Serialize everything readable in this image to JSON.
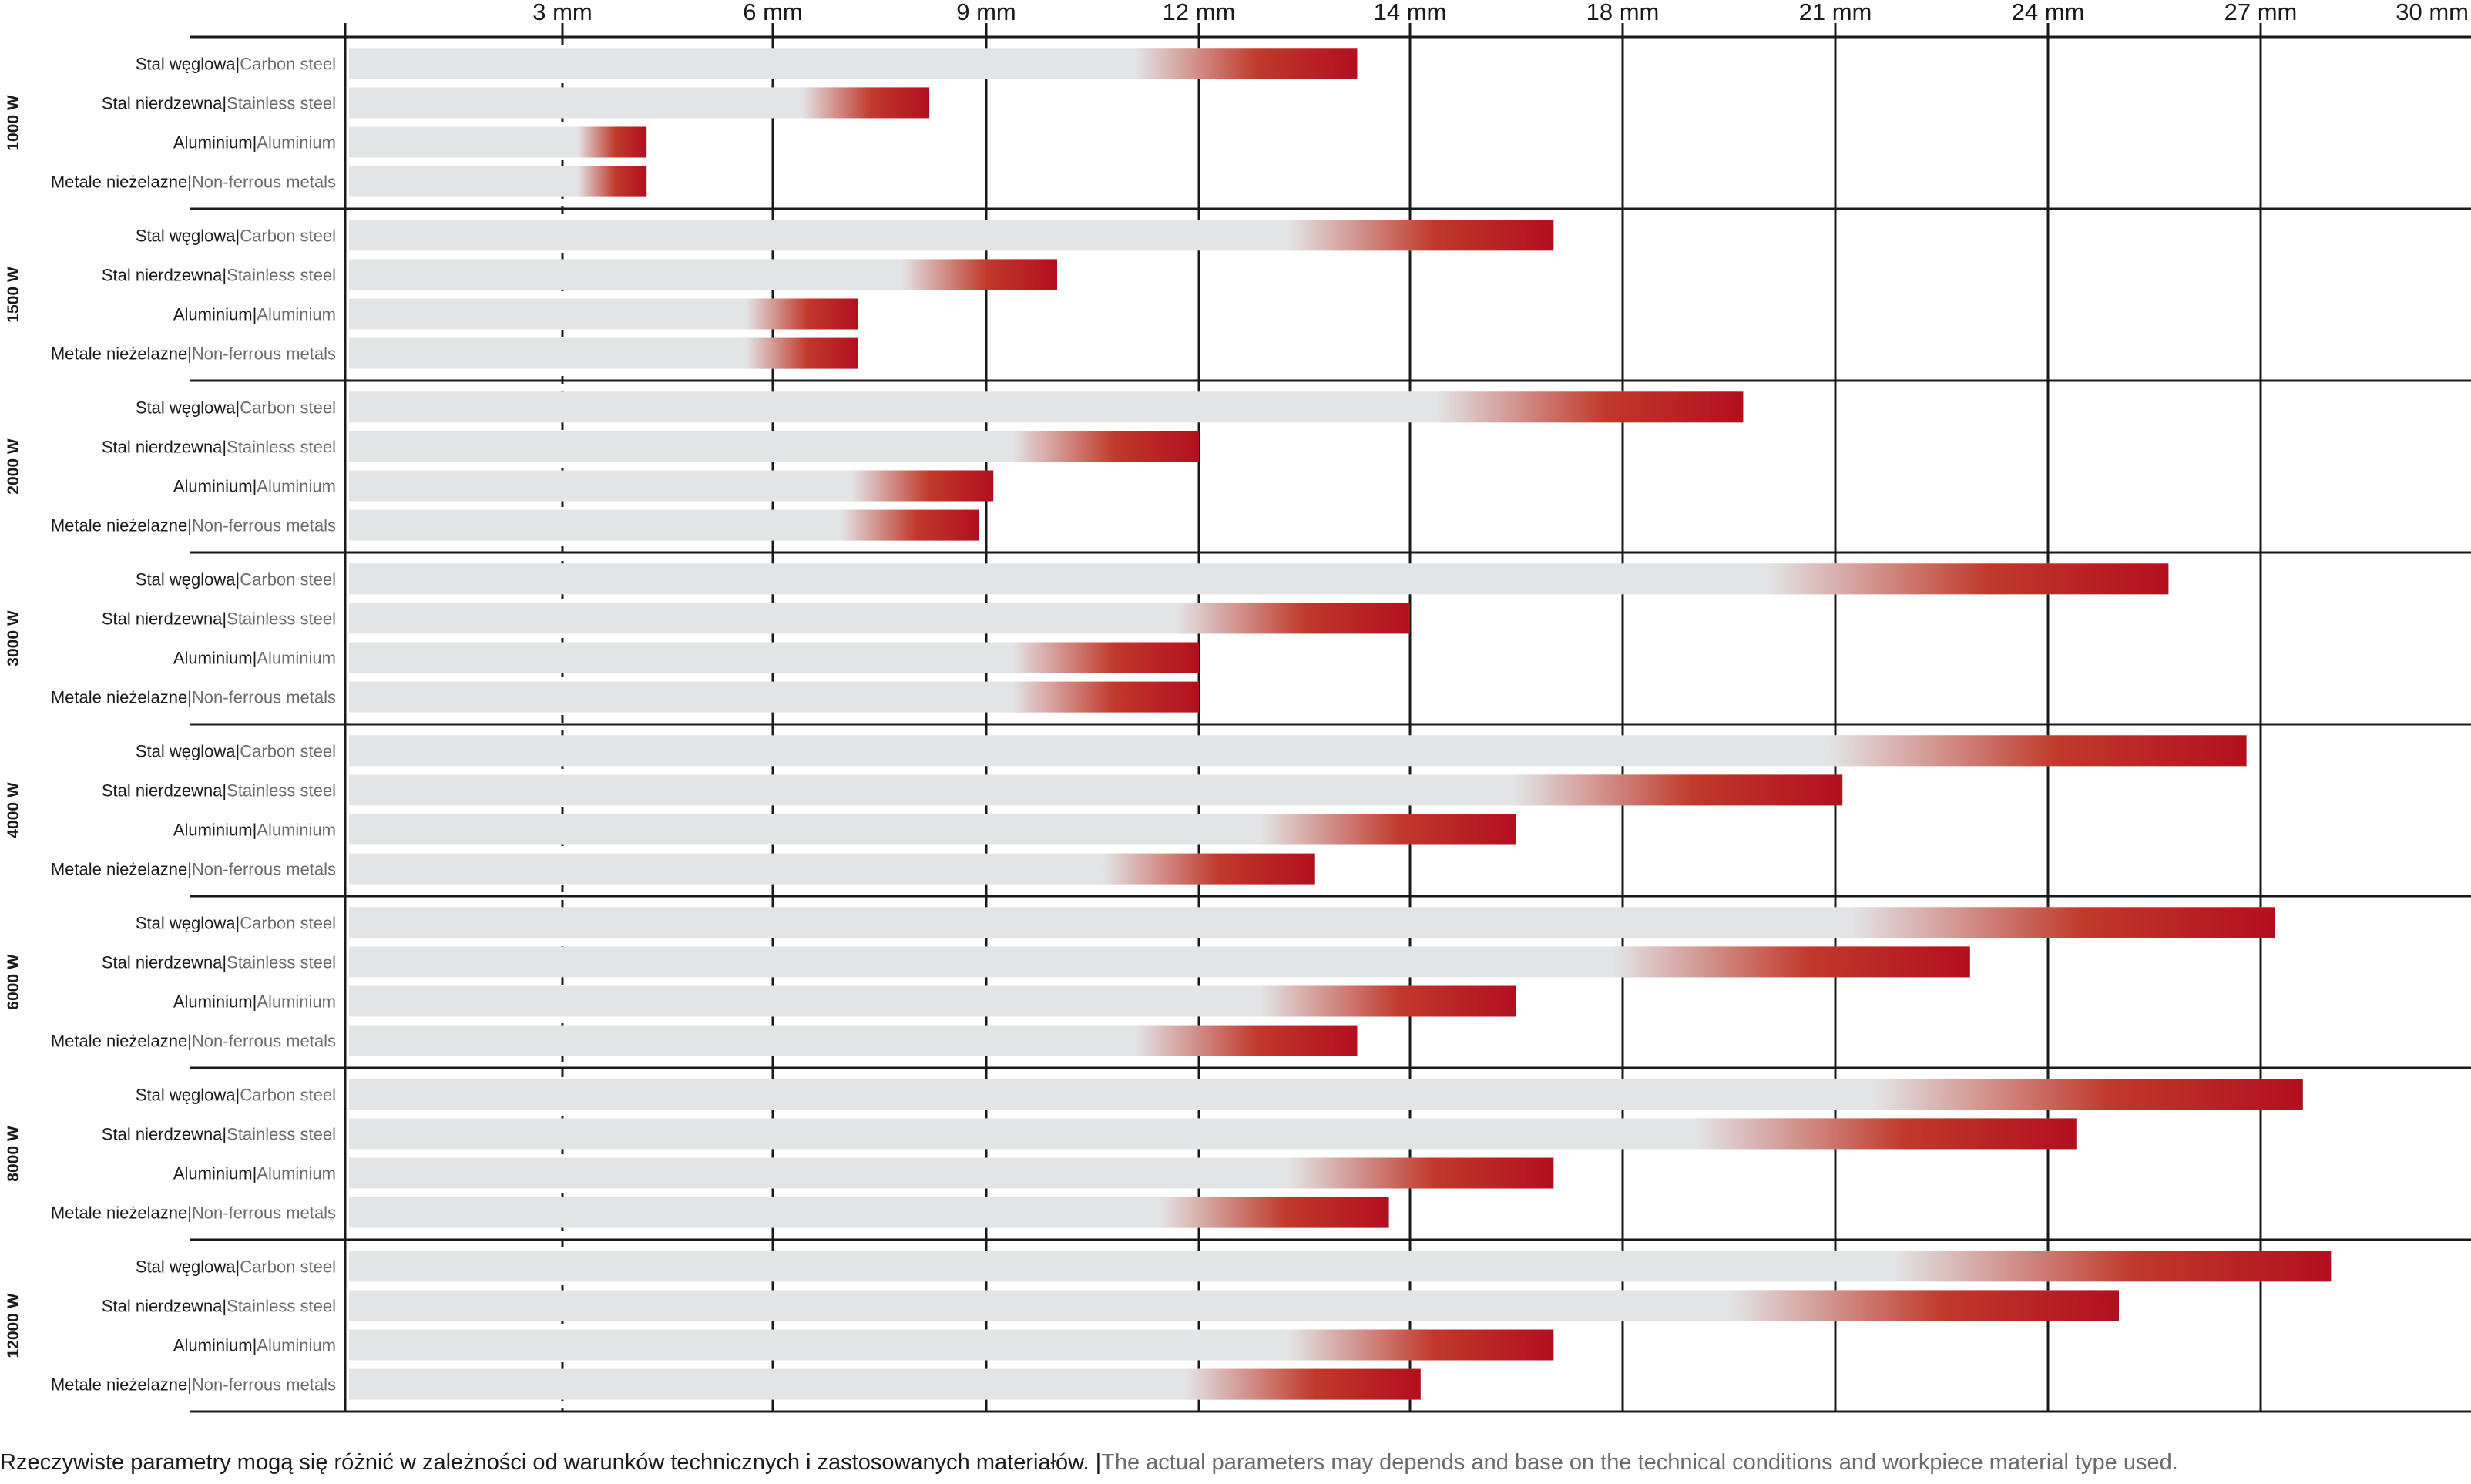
{
  "chart_data": {
    "type": "bar",
    "x_ticks": [
      "3 mm",
      "6 mm",
      "9 mm",
      "12 mm",
      "14 mm",
      "18 mm",
      "21 mm",
      "24 mm",
      "27 mm",
      "30 mm"
    ],
    "materials": [
      {
        "pl": "Stal węglowa",
        "en": "Carbon steel"
      },
      {
        "pl": "Stal nierdzewna",
        "en": "Stainless steel"
      },
      {
        "pl": "Aluminium",
        "en": "Aluminium"
      },
      {
        "pl": "Metale nieżelazne",
        "en": "Non-ferrous metals"
      }
    ],
    "separator": "|",
    "groups": [
      {
        "label": "1000 W",
        "values": [
          13.5,
          8.2,
          4.2,
          4.2
        ]
      },
      {
        "label": "1500 W",
        "values": [
          16.7,
          10.0,
          7.2,
          7.2
        ]
      },
      {
        "label": "2000 W",
        "values": [
          19.7,
          12.0,
          9.1,
          8.9
        ]
      },
      {
        "label": "3000 W",
        "values": [
          25.7,
          14.0,
          12.0,
          12.0
        ]
      },
      {
        "label": "4000 W",
        "values": [
          26.8,
          21.1,
          16.0,
          13.1
        ]
      },
      {
        "label": "6000 W",
        "values": [
          27.2,
          22.9,
          16.0,
          13.5
        ]
      },
      {
        "label": "8000 W",
        "values": [
          27.6,
          24.4,
          16.7,
          13.8
        ]
      },
      {
        "label": "12000 W",
        "values": [
          28.0,
          25.0,
          16.7,
          14.2
        ]
      }
    ],
    "colors": {
      "bar_background": "#e3e4e6",
      "bar_value": "#b30f1f",
      "grid": "#1a1a1a"
    }
  },
  "footnote": {
    "pl": "Rzeczywiste parametry mogą się różnić w zależności od warunków technicznych i zastosowanych materiałów.",
    "separator": " |",
    "en": "The actual parameters may depends and base on the technical conditions and workpiece material type used."
  }
}
